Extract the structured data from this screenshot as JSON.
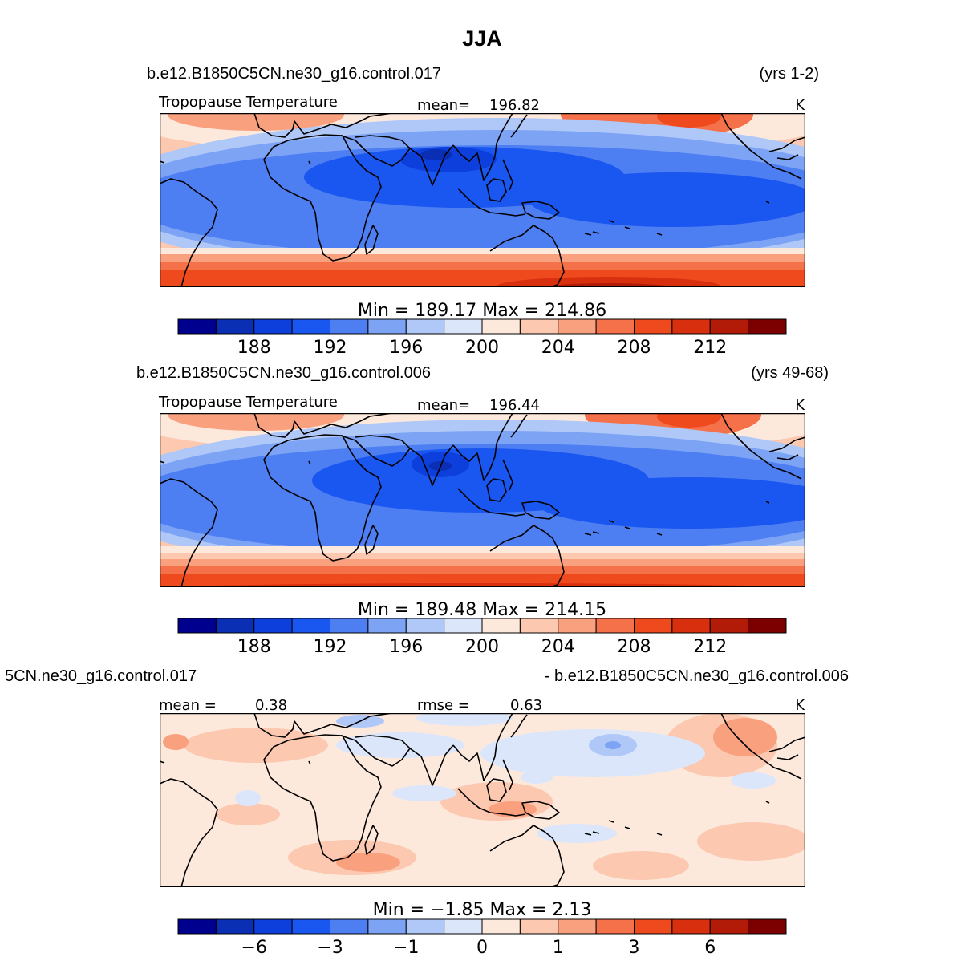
{
  "title": "JJA",
  "chart_data": [
    {
      "type": "heatmap",
      "case_name": "b.e12.B1850C5CN.ne30_g16.control.017",
      "years": "(yrs 1-2)",
      "variable": "Tropopause Temperature",
      "mean_label": "mean=",
      "mean_value": "196.82",
      "units": "K",
      "min_max": "Min = 189.17 Max = 214.86",
      "min": 189.17,
      "max": 214.86,
      "colorbar": {
        "colors": [
          "#00008f",
          "#0a2fb4",
          "#0d3fdc",
          "#1a56f0",
          "#4d7ef2",
          "#7da3f5",
          "#b0c8f8",
          "#dbe6fb",
          "#fde9dc",
          "#fcc8b0",
          "#f9a07e",
          "#f47149",
          "#ee4a1e",
          "#d82f0e",
          "#b11b08",
          "#7d0000"
        ],
        "tick_labels": [
          "188",
          "192",
          "196",
          "200",
          "204",
          "208",
          "212"
        ],
        "tick_after_box": [
          1,
          3,
          5,
          7,
          9,
          11,
          13
        ]
      }
    },
    {
      "type": "heatmap",
      "case_name": "b.e12.B1850C5CN.ne30_g16.control.006",
      "years": "(yrs 49-68)",
      "variable": "Tropopause Temperature",
      "mean_label": "mean=",
      "mean_value": "196.44",
      "units": "K",
      "min_max": "Min = 189.48 Max = 214.15",
      "min": 189.48,
      "max": 214.15,
      "colorbar": {
        "colors": [
          "#00008f",
          "#0a2fb4",
          "#0d3fdc",
          "#1a56f0",
          "#4d7ef2",
          "#7da3f5",
          "#b0c8f8",
          "#dbe6fb",
          "#fde9dc",
          "#fcc8b0",
          "#f9a07e",
          "#f47149",
          "#ee4a1e",
          "#d82f0e",
          "#b11b08",
          "#7d0000"
        ],
        "tick_labels": [
          "188",
          "192",
          "196",
          "200",
          "204",
          "208",
          "212"
        ],
        "tick_after_box": [
          1,
          3,
          5,
          7,
          9,
          11,
          13
        ]
      }
    },
    {
      "type": "heatmap",
      "case_name": "5CN.ne30_g16.control.017",
      "diff_label": "- b.e12.B1850C5CN.ne30_g16.control.006",
      "mean_label": "mean =",
      "mean_value": "0.38",
      "rmse_label": "rmse =",
      "rmse_value": "0.63",
      "units": "K",
      "min_max": "Min = −1.85 Max = 2.13",
      "min": -1.85,
      "max": 2.13,
      "colorbar": {
        "colors": [
          "#00008f",
          "#0a2fb4",
          "#0d3fdc",
          "#1a56f0",
          "#4d7ef2",
          "#7da3f5",
          "#b0c8f8",
          "#dbe6fb",
          "#fde9dc",
          "#fcc8b0",
          "#f9a07e",
          "#f47149",
          "#ee4a1e",
          "#d82f0e",
          "#b11b08",
          "#7d0000"
        ],
        "tick_labels": [
          "−6",
          "−3",
          "−1",
          "0",
          "1",
          "3",
          "6"
        ],
        "tick_after_box": [
          1,
          3,
          5,
          7,
          9,
          11,
          13
        ]
      }
    }
  ]
}
